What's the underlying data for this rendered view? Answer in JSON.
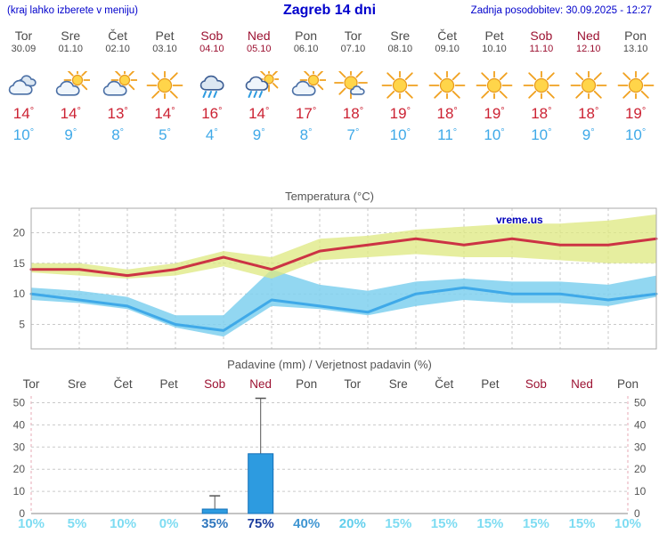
{
  "header": {
    "left_note": "(kraj lahko izberete v meniju)",
    "title": "Zagreb 14 dni",
    "updated": "Zadnja posodobitev: 30.09.2025 - 12:27"
  },
  "colors": {
    "header_blue": "#0000CC",
    "weekday_text": "#4A4A4A",
    "weekend_text": "#9C1232",
    "temp_max": "#CC2233",
    "temp_min": "#3FA9E8",
    "chart_title": "#555555",
    "watermark_blue": "#0000BB"
  },
  "days": [
    {
      "name": "Tor",
      "date": "30.09",
      "weekend": false,
      "icon": "cloudy",
      "tmax": "14",
      "tmin": "10"
    },
    {
      "name": "Sre",
      "date": "01.10",
      "weekend": false,
      "icon": "sun-cloud",
      "tmax": "14",
      "tmin": "9"
    },
    {
      "name": "Čet",
      "date": "02.10",
      "weekend": false,
      "icon": "sun-cloud",
      "tmax": "13",
      "tmin": "8"
    },
    {
      "name": "Pet",
      "date": "03.10",
      "weekend": false,
      "icon": "sunny",
      "tmax": "14",
      "tmin": "5"
    },
    {
      "name": "Sob",
      "date": "04.10",
      "weekend": true,
      "icon": "rain",
      "tmax": "16",
      "tmin": "4"
    },
    {
      "name": "Ned",
      "date": "05.10",
      "weekend": true,
      "icon": "sun-rain",
      "tmax": "14",
      "tmin": "9"
    },
    {
      "name": "Pon",
      "date": "06.10",
      "weekend": false,
      "icon": "sun-cloud",
      "tmax": "17",
      "tmin": "8"
    },
    {
      "name": "Tor",
      "date": "07.10",
      "weekend": false,
      "icon": "sun-small-cloud",
      "tmax": "18",
      "tmin": "7"
    },
    {
      "name": "Sre",
      "date": "08.10",
      "weekend": false,
      "icon": "sunny",
      "tmax": "19",
      "tmin": "10"
    },
    {
      "name": "Čet",
      "date": "09.10",
      "weekend": false,
      "icon": "sunny",
      "tmax": "18",
      "tmin": "11"
    },
    {
      "name": "Pet",
      "date": "10.10",
      "weekend": false,
      "icon": "sunny",
      "tmax": "19",
      "tmin": "10"
    },
    {
      "name": "Sob",
      "date": "11.10",
      "weekend": true,
      "icon": "sunny",
      "tmax": "18",
      "tmin": "10"
    },
    {
      "name": "Ned",
      "date": "12.10",
      "weekend": true,
      "icon": "sunny",
      "tmax": "18",
      "tmin": "9"
    },
    {
      "name": "Pon",
      "date": "13.10",
      "weekend": false,
      "icon": "sunny",
      "tmax": "19",
      "tmin": "10"
    }
  ],
  "chart_data": [
    {
      "type": "line",
      "title": "Temperatura (°C)",
      "watermark": "vreme.us",
      "categories": [
        "Tor",
        "Sre",
        "Čet",
        "Pet",
        "Sob",
        "Ned",
        "Pon",
        "Tor",
        "Sre",
        "Čet",
        "Pet",
        "Sob",
        "Ned",
        "Pon"
      ],
      "ylim": [
        1,
        24
      ],
      "yticks": [
        5,
        10,
        15,
        20
      ],
      "bands": [
        {
          "name": "temp-min-range",
          "color": "#7FD0EE",
          "opacity": 0.85,
          "upper": [
            11,
            10.5,
            9.5,
            6.5,
            6.5,
            14,
            11.5,
            10.5,
            12,
            12.5,
            12,
            12,
            11.5,
            13
          ],
          "lower": [
            9,
            8.5,
            7.5,
            4.5,
            3,
            8,
            7.5,
            6.5,
            8,
            9,
            8.5,
            8.5,
            8,
            9.5
          ]
        },
        {
          "name": "temp-max-range",
          "color": "#DDE87F",
          "opacity": 0.75,
          "upper": [
            15,
            15,
            14,
            15,
            17,
            16,
            19,
            19.5,
            20.5,
            21,
            21.5,
            21.5,
            22,
            23
          ],
          "lower": [
            13.5,
            13,
            12.5,
            13,
            14.5,
            12.5,
            15.5,
            16,
            16.5,
            16,
            16,
            15.5,
            15,
            15
          ]
        }
      ],
      "series": [
        {
          "name": "temp-max",
          "color": "#CC3344",
          "width": 3,
          "values": [
            14,
            14,
            13,
            14,
            16,
            14,
            17,
            18,
            19,
            18,
            19,
            18,
            18,
            19
          ]
        },
        {
          "name": "temp-min",
          "color": "#3FA9E8",
          "width": 3,
          "values": [
            10,
            9,
            8,
            5,
            4,
            9,
            8,
            7,
            10,
            11,
            10,
            10,
            9,
            10
          ]
        }
      ]
    },
    {
      "type": "bar",
      "title": "Padavine (mm) / Verjetnost padavin (%)",
      "categories": [
        "Tor",
        "Sre",
        "Čet",
        "Pet",
        "Sob",
        "Ned",
        "Pon",
        "Tor",
        "Sre",
        "Čet",
        "Pet",
        "Sob",
        "Ned",
        "Pon"
      ],
      "ylim": [
        0,
        53
      ],
      "yticks": [
        0,
        10,
        20,
        30,
        40,
        50
      ],
      "bar_color": "#2D9BE0",
      "bar_border": "#1470B8",
      "values": [
        0,
        0,
        0,
        0,
        2,
        27,
        0,
        0,
        0,
        0,
        0,
        0,
        0,
        0
      ],
      "whisker_high": [
        0,
        0,
        0,
        0,
        8,
        52,
        0,
        0,
        0,
        0,
        0,
        0,
        0,
        0
      ],
      "probabilities": [
        {
          "label": "10%",
          "color": "#7EDCF2"
        },
        {
          "label": "5%",
          "color": "#7EDCF2"
        },
        {
          "label": "10%",
          "color": "#7EDCF2"
        },
        {
          "label": "0%",
          "color": "#7EDCF2"
        },
        {
          "label": "35%",
          "color": "#2F77BE"
        },
        {
          "label": "75%",
          "color": "#1D3E9E"
        },
        {
          "label": "40%",
          "color": "#3F96D2"
        },
        {
          "label": "20%",
          "color": "#63CFEC"
        },
        {
          "label": "15%",
          "color": "#7EDCF2"
        },
        {
          "label": "15%",
          "color": "#7EDCF2"
        },
        {
          "label": "15%",
          "color": "#7EDCF2"
        },
        {
          "label": "15%",
          "color": "#7EDCF2"
        },
        {
          "label": "15%",
          "color": "#7EDCF2"
        },
        {
          "label": "10%",
          "color": "#7EDCF2"
        }
      ]
    }
  ]
}
